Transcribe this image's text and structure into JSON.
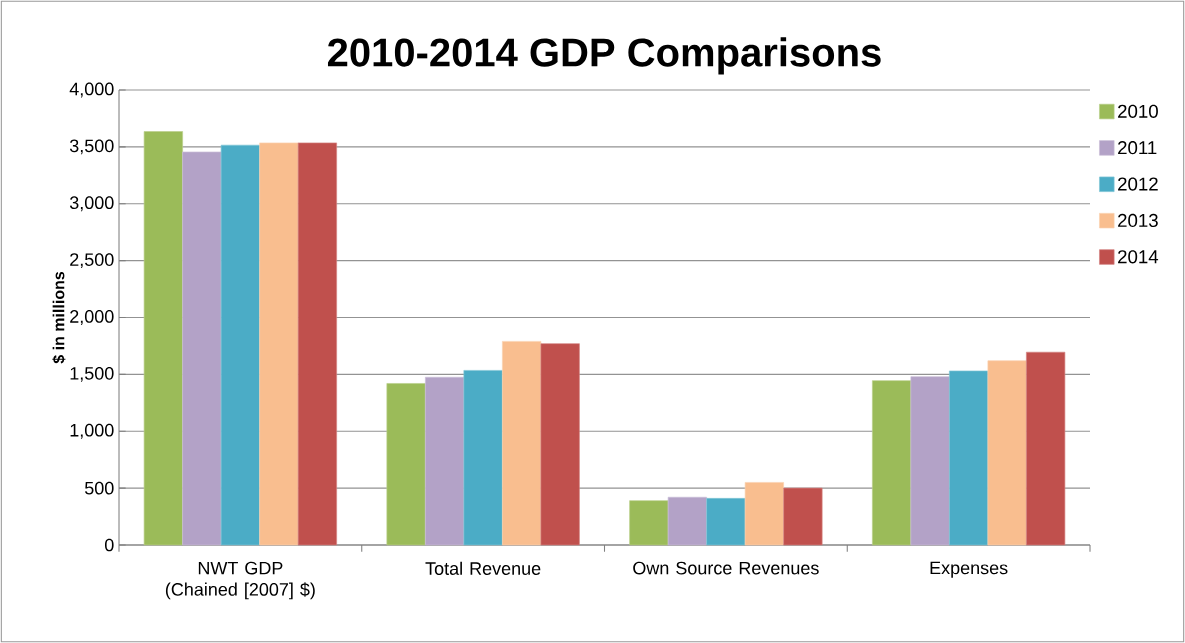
{
  "chart_data": {
    "type": "bar",
    "title": "2010-2014 GDP Comparisons",
    "ylabel": "$ in millions",
    "categories": [
      "NWT GDP (Chained [2007] $)",
      "Total Revenue",
      "Own Source Revenues",
      "Expenses"
    ],
    "series": [
      {
        "name": "2010",
        "color": "#9bbb59",
        "values": [
          3635,
          1420,
          390,
          1445
        ]
      },
      {
        "name": "2011",
        "color": "#b3a2c7",
        "values": [
          3455,
          1475,
          420,
          1480
        ]
      },
      {
        "name": "2012",
        "color": "#4bacc6",
        "values": [
          3515,
          1535,
          410,
          1530
        ]
      },
      {
        "name": "2013",
        "color": "#f9be8f",
        "values": [
          3535,
          1790,
          550,
          1620
        ]
      },
      {
        "name": "2014",
        "color": "#c0504d",
        "values": [
          3535,
          1770,
          500,
          1695
        ]
      }
    ],
    "ylim": [
      0,
      4000
    ],
    "yticks": [
      0,
      {
        "value": 500,
        "label": "500"
      },
      {
        "value": 1000,
        "label": "1,000"
      },
      {
        "value": 1500,
        "label": "1,500"
      },
      {
        "value": 2000,
        "label": "2,000"
      },
      {
        "value": 2500,
        "label": "2,500"
      },
      {
        "value": 3000,
        "label": "3,000"
      },
      {
        "value": 3500,
        "label": "3,500"
      },
      {
        "value": 4000,
        "label": "4,000"
      }
    ],
    "grid": "y",
    "legend": "right"
  }
}
